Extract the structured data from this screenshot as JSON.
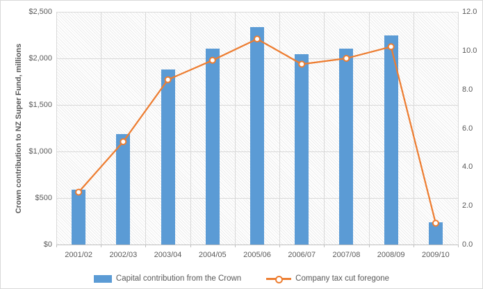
{
  "chart_data": {
    "type": "bar",
    "subtype": "bar-line-combo",
    "categories": [
      "2001/02",
      "2002/03",
      "2003/04",
      "2004/05",
      "2005/06",
      "2006/07",
      "2007/08",
      "2008/09",
      "2009/10"
    ],
    "series": [
      {
        "name": "Capital contribution from the Crown",
        "type": "bar",
        "axis": "left",
        "color": "#5b9bd5",
        "values": [
          590,
          1190,
          1880,
          2105,
          2335,
          2045,
          2105,
          2250,
          240
        ]
      },
      {
        "name": "Company tax cut foregone",
        "type": "line",
        "axis": "right",
        "color": "#ed7d31",
        "marker": "open-circle",
        "values": [
          2.7,
          5.3,
          8.5,
          9.5,
          10.6,
          9.3,
          9.6,
          10.2,
          1.1
        ]
      }
    ],
    "left_axis": {
      "title": "Crown contribution to NZ Super Fund, millions",
      "min": 0,
      "max": 2500,
      "ticks": [
        "$0",
        "$500",
        "$1,000",
        "$1,500",
        "$2,000",
        "$2,500"
      ]
    },
    "right_axis": {
      "min": 0,
      "max": 12,
      "ticks": [
        "0.0",
        "2.0",
        "4.0",
        "6.0",
        "8.0",
        "10.0",
        "12.0"
      ]
    },
    "grid": true,
    "plot_background": "diagonal-hatch",
    "legend_position": "bottom"
  },
  "colors": {
    "bar": "#5b9bd5",
    "line": "#ed7d31",
    "grid": "#d9d9d9",
    "text": "#595959",
    "marker_fill": "#ffffff"
  }
}
